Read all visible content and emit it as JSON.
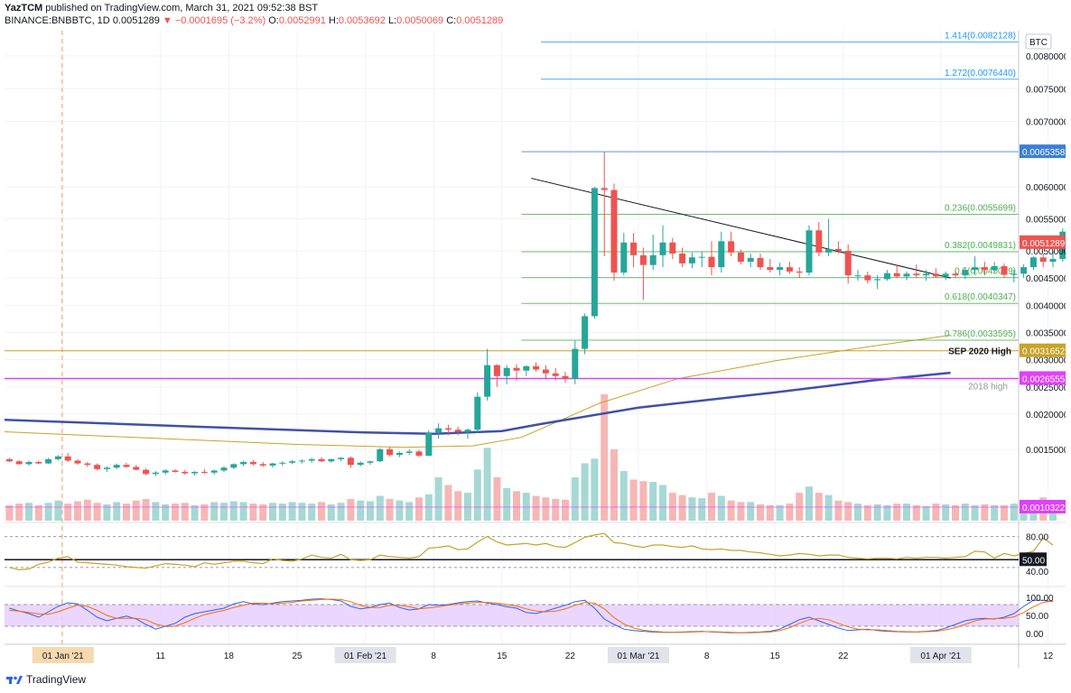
{
  "header": {
    "author": "YazTCM",
    "published": "published on TradingView.com, March 31, 2021 09:52:38 BST",
    "symbol": "BINANCE:BNBBTC, 1D",
    "last": "0.0051289",
    "change": "▼ −0.0001695 (−3.2%)",
    "o_label": "O:",
    "o": "0.0052991",
    "h_label": "H:",
    "h": "0.0053692",
    "l_label": "L:",
    "l": "0.0050069",
    "c_label": "C:",
    "c": "0.0051289"
  },
  "footer": {
    "brand": "TradingView"
  },
  "chart_data": {
    "type": "candlestick",
    "currency": "BTC",
    "y_ticks": [
      0.0015,
      0.002,
      0.0025,
      0.003,
      0.0035,
      0.004,
      0.0045,
      0.005,
      0.0055,
      0.006,
      0.007,
      0.0075,
      0.008
    ],
    "y_tick_labels": [
      "0.0015000",
      "0.0020000",
      "0.0025000",
      "0.0030000",
      "0.0035000",
      "0.0040000",
      "0.0045000",
      "0.0050000",
      "0.0055000",
      "0.0060000",
      "0.0070000",
      "0.0075000",
      "0.0080000"
    ],
    "x_axis": {
      "start": "2020-12-26",
      "end": "2021-04-12",
      "ticks": [
        {
          "date": "2021-01-01",
          "label": "01 Jan '21",
          "highlight": true
        },
        {
          "date": "2021-01-11",
          "label": "11"
        },
        {
          "date": "2021-01-18",
          "label": "18"
        },
        {
          "date": "2021-01-25",
          "label": "25"
        },
        {
          "date": "2021-02-01",
          "label": "01 Feb '21",
          "highlight": true
        },
        {
          "date": "2021-02-08",
          "label": "8"
        },
        {
          "date": "2021-02-15",
          "label": "15"
        },
        {
          "date": "2021-02-22",
          "label": "22"
        },
        {
          "date": "2021-03-01",
          "label": "01 Mar '21",
          "highlight": true
        },
        {
          "date": "2021-03-08",
          "label": "8"
        },
        {
          "date": "2021-03-15",
          "label": "15"
        },
        {
          "date": "2021-03-22",
          "label": "22"
        },
        {
          "date": "2021-04-01",
          "label": "01 Apr '21",
          "highlight": true
        },
        {
          "date": "2021-04-12",
          "label": "12"
        }
      ]
    },
    "candles_start": "2020-12-26",
    "candles": [
      [
        0.00136,
        0.00138,
        0.00132,
        0.00133
      ],
      [
        0.00133,
        0.00135,
        0.00128,
        0.00129
      ],
      [
        0.00129,
        0.00134,
        0.00127,
        0.00132
      ],
      [
        0.00132,
        0.00134,
        0.00129,
        0.0013
      ],
      [
        0.0013,
        0.00138,
        0.00129,
        0.00136
      ],
      [
        0.00136,
        0.00142,
        0.00134,
        0.0014
      ],
      [
        0.0014,
        0.00145,
        0.00132,
        0.00134
      ],
      [
        0.00134,
        0.00136,
        0.00128,
        0.0013
      ],
      [
        0.0013,
        0.00132,
        0.00125,
        0.00128
      ],
      [
        0.00128,
        0.0013,
        0.0012,
        0.00122
      ],
      [
        0.00122,
        0.00126,
        0.00118,
        0.00124
      ],
      [
        0.00124,
        0.0013,
        0.00122,
        0.00128
      ],
      [
        0.00128,
        0.00131,
        0.00124,
        0.00125
      ],
      [
        0.00125,
        0.00128,
        0.0012,
        0.00121
      ],
      [
        0.00121,
        0.00123,
        0.00113,
        0.00115
      ],
      [
        0.00115,
        0.00119,
        0.00112,
        0.00117
      ],
      [
        0.00117,
        0.00122,
        0.00114,
        0.0012
      ],
      [
        0.0012,
        0.00122,
        0.00117,
        0.00118
      ],
      [
        0.00118,
        0.00121,
        0.00114,
        0.00116
      ],
      [
        0.00116,
        0.00119,
        0.00113,
        0.00118
      ],
      [
        0.00118,
        0.00122,
        0.00115,
        0.00117
      ],
      [
        0.00117,
        0.00121,
        0.00114,
        0.0012
      ],
      [
        0.0012,
        0.00126,
        0.00118,
        0.00124
      ],
      [
        0.00124,
        0.0013,
        0.00122,
        0.00129
      ],
      [
        0.00129,
        0.00134,
        0.00126,
        0.00132
      ],
      [
        0.00132,
        0.00135,
        0.00127,
        0.00129
      ],
      [
        0.00129,
        0.00132,
        0.00125,
        0.00127
      ],
      [
        0.00127,
        0.00131,
        0.00124,
        0.0013
      ],
      [
        0.0013,
        0.00133,
        0.00127,
        0.00131
      ],
      [
        0.00131,
        0.00135,
        0.00129,
        0.00133
      ],
      [
        0.00133,
        0.00136,
        0.0013,
        0.00134
      ],
      [
        0.00134,
        0.00138,
        0.00131,
        0.00136
      ],
      [
        0.00136,
        0.00139,
        0.00132,
        0.00133
      ],
      [
        0.00133,
        0.00137,
        0.00131,
        0.00136
      ],
      [
        0.00136,
        0.00139,
        0.00133,
        0.00138
      ],
      [
        0.00138,
        0.0014,
        0.00124,
        0.00128
      ],
      [
        0.00128,
        0.00133,
        0.00126,
        0.00131
      ],
      [
        0.00131,
        0.00134,
        0.00128,
        0.00133
      ],
      [
        0.00133,
        0.00152,
        0.00132,
        0.0015
      ],
      [
        0.0015,
        0.00153,
        0.0014,
        0.00142
      ],
      [
        0.00142,
        0.00147,
        0.00139,
        0.00145
      ],
      [
        0.00145,
        0.0015,
        0.00142,
        0.00147
      ],
      [
        0.00147,
        0.00149,
        0.00139,
        0.00141
      ],
      [
        0.00141,
        0.00177,
        0.0014,
        0.00174
      ],
      [
        0.00174,
        0.00187,
        0.00165,
        0.0018
      ],
      [
        0.0018,
        0.00185,
        0.0017,
        0.00178
      ],
      [
        0.00178,
        0.00182,
        0.0017,
        0.00175
      ],
      [
        0.00175,
        0.0018,
        0.00165,
        0.00178
      ],
      [
        0.00178,
        0.0024,
        0.00173,
        0.00232
      ],
      [
        0.00232,
        0.0032,
        0.00225,
        0.0029
      ],
      [
        0.0029,
        0.00292,
        0.0025,
        0.0027
      ],
      [
        0.0027,
        0.0029,
        0.00255,
        0.00285
      ],
      [
        0.00285,
        0.00292,
        0.00262,
        0.0028
      ],
      [
        0.0028,
        0.0029,
        0.0027,
        0.00288
      ],
      [
        0.00288,
        0.00295,
        0.00278,
        0.00282
      ],
      [
        0.00282,
        0.0029,
        0.00265,
        0.00275
      ],
      [
        0.00275,
        0.00285,
        0.00262,
        0.0027
      ],
      [
        0.0027,
        0.00278,
        0.00258,
        0.00265
      ],
      [
        0.00265,
        0.00335,
        0.00255,
        0.0032
      ],
      [
        0.0032,
        0.00385,
        0.0031,
        0.0038
      ],
      [
        0.0038,
        0.006,
        0.00375,
        0.00598
      ],
      [
        0.00598,
        0.00653,
        0.0049,
        0.00595
      ],
      [
        0.00595,
        0.00605,
        0.00445,
        0.0046
      ],
      [
        0.0046,
        0.00528,
        0.00455,
        0.00513
      ],
      [
        0.00513,
        0.00528,
        0.0047,
        0.00492
      ],
      [
        0.00492,
        0.00505,
        0.0041,
        0.00474
      ],
      [
        0.00474,
        0.00525,
        0.00465,
        0.00492
      ],
      [
        0.00492,
        0.0054,
        0.0047,
        0.00513
      ],
      [
        0.00513,
        0.0052,
        0.00485,
        0.00495
      ],
      [
        0.00495,
        0.00505,
        0.0047,
        0.00477
      ],
      [
        0.00477,
        0.00497,
        0.00468,
        0.00488
      ],
      [
        0.00488,
        0.00498,
        0.0047,
        0.00489
      ],
      [
        0.00489,
        0.00515,
        0.00455,
        0.0047
      ],
      [
        0.0047,
        0.0053,
        0.0046,
        0.00515
      ],
      [
        0.00515,
        0.0053,
        0.0049,
        0.00497
      ],
      [
        0.00497,
        0.00502,
        0.00475,
        0.0048
      ],
      [
        0.0048,
        0.00495,
        0.0047,
        0.00487
      ],
      [
        0.00487,
        0.00495,
        0.00465,
        0.0047
      ],
      [
        0.0047,
        0.00485,
        0.0046,
        0.00465
      ],
      [
        0.00465,
        0.00478,
        0.00455,
        0.0047
      ],
      [
        0.0047,
        0.0048,
        0.00458,
        0.00462
      ],
      [
        0.00462,
        0.0047,
        0.0045,
        0.0046
      ],
      [
        0.0046,
        0.0054,
        0.00455,
        0.00532
      ],
      [
        0.00532,
        0.00545,
        0.0049,
        0.00497
      ],
      [
        0.00497,
        0.0055,
        0.0049,
        0.00503
      ],
      [
        0.00503,
        0.00515,
        0.00495,
        0.005
      ],
      [
        0.005,
        0.0051,
        0.0044,
        0.00455
      ],
      [
        0.00455,
        0.00465,
        0.00445,
        0.00455
      ],
      [
        0.00455,
        0.00462,
        0.0044,
        0.00446
      ],
      [
        0.00446,
        0.00455,
        0.0043,
        0.00448
      ],
      [
        0.00448,
        0.00465,
        0.00445,
        0.00459
      ],
      [
        0.00459,
        0.00475,
        0.0045,
        0.00453
      ],
      [
        0.00453,
        0.00462,
        0.00446,
        0.00458
      ],
      [
        0.00458,
        0.00475,
        0.0045,
        0.00455
      ],
      [
        0.00455,
        0.00465,
        0.00445,
        0.00458
      ],
      [
        0.00458,
        0.00468,
        0.0045,
        0.00453
      ],
      [
        0.00453,
        0.00462,
        0.00446,
        0.00458
      ],
      [
        0.00458,
        0.00465,
        0.0045,
        0.00455
      ],
      [
        0.00455,
        0.0047,
        0.00448,
        0.00465
      ],
      [
        0.00465,
        0.0049,
        0.00455,
        0.0047
      ],
      [
        0.0047,
        0.0048,
        0.00455,
        0.00465
      ],
      [
        0.00465,
        0.0048,
        0.0046,
        0.00472
      ],
      [
        0.00472,
        0.00477,
        0.0045,
        0.00456
      ],
      [
        0.00456,
        0.00465,
        0.00442,
        0.00458
      ],
      [
        0.00458,
        0.00475,
        0.0045,
        0.0047
      ],
      [
        0.0047,
        0.0049,
        0.00465,
        0.00488
      ],
      [
        0.00488,
        0.00495,
        0.0047,
        0.0048
      ],
      [
        0.0048,
        0.005,
        0.0047,
        0.00485
      ],
      [
        0.00485,
        0.00535,
        0.0048,
        0.0053
      ],
      [
        0.0053,
        0.00537,
        0.005,
        0.00513
      ]
    ],
    "volumes": [
      2.0,
      2.2,
      2.3,
      2.0,
      2.3,
      2.6,
      2.2,
      2.5,
      2.7,
      2.3,
      2.1,
      2.4,
      2.2,
      2.6,
      2.8,
      2.4,
      2.1,
      2.2,
      2.3,
      2.0,
      2.1,
      2.4,
      2.3,
      2.5,
      2.4,
      2.2,
      2.1,
      2.3,
      2.2,
      2.4,
      2.3,
      2.2,
      2.4,
      2.1,
      2.3,
      2.8,
      2.6,
      2.5,
      3.2,
      2.8,
      2.6,
      2.4,
      3.0,
      3.4,
      5.6,
      4.6,
      3.8,
      3.6,
      6.6,
      9.4,
      5.6,
      4.2,
      3.8,
      3.6,
      3.2,
      3.0,
      2.8,
      2.7,
      5.6,
      7.4,
      8.0,
      16.3,
      9.2,
      6.4,
      5.3,
      5.1,
      5.0,
      4.6,
      3.6,
      3.3,
      3.0,
      2.9,
      3.6,
      3.2,
      2.6,
      2.4,
      2.4,
      2.1,
      2.0,
      2.0,
      2.2,
      3.6,
      4.4,
      3.6,
      3.3,
      2.6,
      2.4,
      2.2,
      2.0,
      2.1,
      2.0,
      2.2,
      2.2,
      2.0,
      1.9,
      2.2,
      2.1,
      2.0,
      2.2,
      2.0,
      2.1,
      2.0,
      2.0,
      2.2,
      2.1,
      2.4,
      3.0,
      2.2
    ],
    "volume_label": "0.0010322",
    "current_price_label": "0.0051289",
    "fib_levels": [
      {
        "label": "1.414(0.0082128)",
        "value": 0.0082128
      },
      {
        "label": "1.272(0.0076440)",
        "value": 0.007644
      },
      {
        "label": "0.236(0.0055699)",
        "value": 0.0055699
      },
      {
        "label": "0.382(0.0049831)",
        "value": 0.0049831
      },
      {
        "label": "0.5(0.0045089)",
        "value": 0.0045089
      },
      {
        "label": "0.618(0.0040347)",
        "value": 0.0040347
      },
      {
        "label": "0.786(0.0033595)",
        "value": 0.0033595
      }
    ],
    "high_level": {
      "value": 0.0065358,
      "label": "0.0065358"
    },
    "sep_level": {
      "value": 0.0031652,
      "text": "SEP 2020 High",
      "label": "0.0031652"
    },
    "h2018_level": {
      "value": 0.0026555,
      "text": "2018 high",
      "label": "0.0026555"
    },
    "trendline": {
      "from": [
        "2021-02-18",
        0.00613
      ],
      "to": [
        "2021-04-02",
        0.0045
      ]
    },
    "ma_long": {
      "color": "#3f51a8",
      "points": [
        [
          "2020-12-26",
          0.00192
        ],
        [
          "2021-01-15",
          0.00182
        ],
        [
          "2021-02-01",
          0.00174
        ],
        [
          "2021-02-08",
          0.00172
        ],
        [
          "2021-02-15",
          0.00176
        ],
        [
          "2021-02-19",
          0.00186
        ],
        [
          "2021-03-01",
          0.00212
        ],
        [
          "2021-03-15",
          0.0024
        ],
        [
          "2021-03-25",
          0.00262
        ],
        [
          "2021-04-02",
          0.00276
        ]
      ]
    },
    "ma_short": {
      "color": "#c9a227",
      "points": [
        [
          "2020-12-26",
          0.00175
        ],
        [
          "2021-01-10",
          0.00166
        ],
        [
          "2021-01-25",
          0.00157
        ],
        [
          "2021-02-05",
          0.00153
        ],
        [
          "2021-02-12",
          0.00155
        ],
        [
          "2021-02-17",
          0.00167
        ],
        [
          "2021-02-25",
          0.0022
        ],
        [
          "2021-03-05",
          0.00265
        ],
        [
          "2021-03-15",
          0.00298
        ],
        [
          "2021-03-25",
          0.00325
        ],
        [
          "2021-04-02",
          0.00345
        ]
      ]
    },
    "rsi": {
      "ticks": [
        "80.00",
        "50.00",
        "40.00"
      ],
      "current_label": "50.00",
      "values": [
        40,
        37,
        38,
        44,
        47,
        52,
        54,
        47,
        46,
        45,
        44,
        43,
        41,
        40,
        39,
        42,
        45,
        44,
        43,
        41,
        46,
        44,
        46,
        48,
        48,
        46,
        45,
        51,
        49,
        48,
        51,
        56,
        53,
        52,
        57,
        50,
        49,
        50,
        56,
        54,
        53,
        52,
        54,
        65,
        66,
        68,
        63,
        64,
        73,
        80,
        73,
        69,
        70,
        71,
        69,
        71,
        67,
        66,
        72,
        79,
        82,
        84,
        72,
        71,
        68,
        66,
        69,
        69,
        67,
        66,
        68,
        64,
        63,
        64,
        62,
        62,
        60,
        59,
        57,
        55,
        56,
        58,
        57,
        55,
        56,
        56,
        53,
        52,
        51,
        52,
        52,
        51,
        53,
        52,
        53,
        53,
        52,
        53,
        54,
        61,
        60,
        52,
        58,
        55,
        58,
        61,
        78,
        69
      ]
    },
    "stoch": {
      "ticks": [
        "100.00",
        "50.00",
        "0.00"
      ],
      "k": [
        70,
        62,
        55,
        45,
        60,
        75,
        85,
        82,
        64,
        45,
        35,
        42,
        48,
        40,
        25,
        12,
        20,
        28,
        45,
        55,
        60,
        65,
        70,
        82,
        88,
        82,
        80,
        84,
        88,
        90,
        92,
        95,
        96,
        94,
        90,
        75,
        68,
        72,
        80,
        84,
        72,
        65,
        68,
        80,
        78,
        80,
        85,
        88,
        90,
        84,
        80,
        74,
        70,
        58,
        55,
        62,
        70,
        78,
        88,
        92,
        70,
        40,
        25,
        12,
        8,
        6,
        4,
        3,
        3,
        4,
        5,
        6,
        4,
        3,
        2,
        2,
        3,
        4,
        6,
        12,
        25,
        38,
        45,
        35,
        25,
        15,
        8,
        10,
        12,
        8,
        6,
        5,
        4,
        4,
        6,
        8,
        15,
        25,
        35,
        40,
        42,
        40,
        45,
        55,
        75,
        92,
        92,
        88
      ],
      "d": [
        64,
        62,
        58,
        54,
        53,
        60,
        70,
        78,
        75,
        64,
        50,
        42,
        42,
        42,
        38,
        26,
        19,
        20,
        30,
        42,
        52,
        58,
        64,
        72,
        78,
        84,
        84,
        82,
        84,
        86,
        90,
        92,
        94,
        95,
        94,
        88,
        78,
        72,
        72,
        78,
        78,
        74,
        68,
        71,
        74,
        78,
        82,
        84,
        86,
        86,
        84,
        80,
        76,
        68,
        62,
        60,
        62,
        68,
        78,
        86,
        84,
        68,
        44,
        26,
        15,
        9,
        6,
        4,
        3,
        3,
        4,
        5,
        5,
        4,
        3,
        2,
        2,
        3,
        4,
        8,
        16,
        28,
        38,
        42,
        38,
        28,
        18,
        12,
        10,
        10,
        8,
        6,
        5,
        4,
        5,
        6,
        10,
        16,
        25,
        35,
        40,
        41,
        42,
        46,
        58,
        74,
        86,
        90
      ]
    },
    "currency_badge": "BTC"
  }
}
